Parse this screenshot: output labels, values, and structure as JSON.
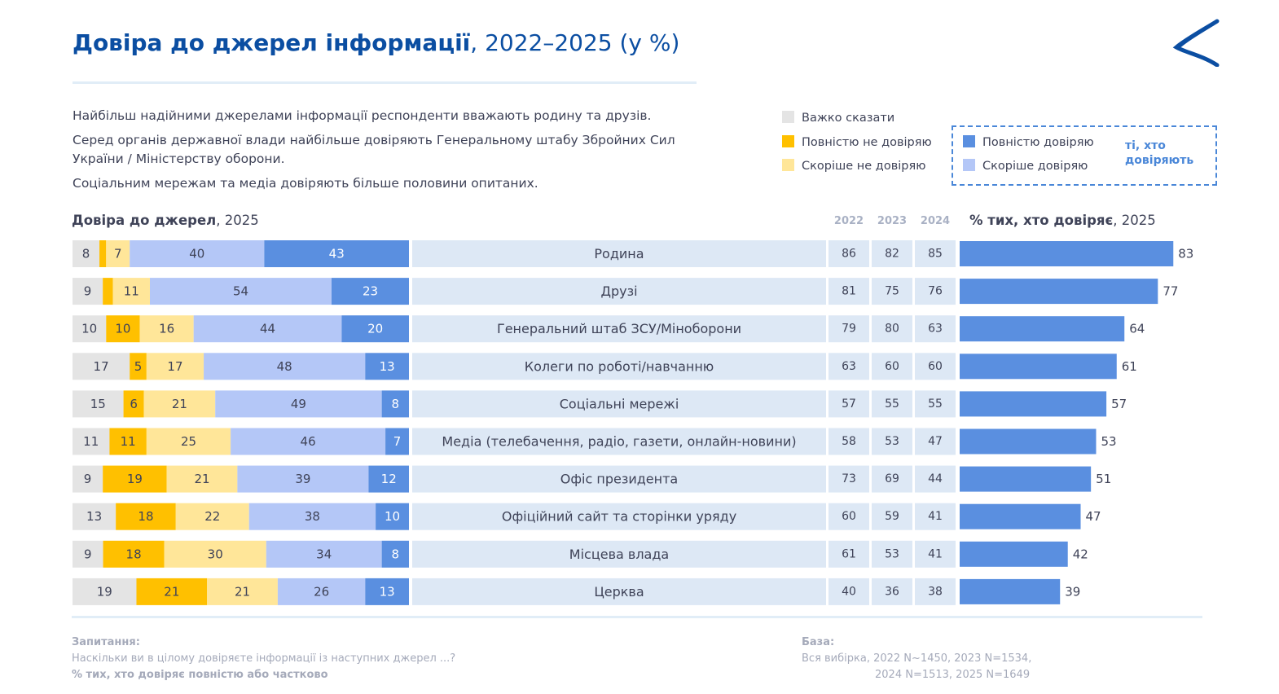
{
  "header": {
    "title_bold": "Довіра до джерел інформації",
    "title_rest": ", 2022–2025 (у %)"
  },
  "summary": [
    "Найбільш надійними джерелами інформації респонденти вважають родину та друзів.",
    "Серед органів державної влади найбільше довіряють Генеральному штабу Збройних Сил України / Міністерству оборони.",
    "Соціальним мережам та медіа довіряють більше половини опитаних."
  ],
  "legend": {
    "hard_to_say": "Важко сказати",
    "fully_distrust": "Повністю не довіряю",
    "rather_distrust": "Скоріше не довіряю",
    "fully_trust": "Повністю довіряю",
    "rather_trust": "Скоріше довіряю",
    "trusters_note": "ті, хто довіряють"
  },
  "colors": {
    "hard_to_say": "#e4e4e4",
    "fully_distrust": "#ffc000",
    "rather_distrust": "#ffe699",
    "rather_trust": "#b4c7f7",
    "fully_trust": "#5a8fe0",
    "label_band": "#dde8f5",
    "total_bar": "#5a8fe0",
    "accent": "#0b4ea2"
  },
  "section": {
    "left_bold": "Довіра до джерел",
    "left_rest": ", 2025",
    "right_bold": "% тих, хто довіряє",
    "right_rest": ", 2025"
  },
  "chart_data": {
    "type": "bar",
    "stacked": true,
    "orientation": "horizontal",
    "categories": [
      "Родина",
      "Друзі",
      "Генеральний штаб ЗСУ/Міноборони",
      "Колеги по роботі/навчанню",
      "Соціальні мережі",
      "Медіа (телебачення, радіо, газети, онлайн-новини)",
      "Офіс президента",
      "Офіційний сайт та сторінки уряду",
      "Місцева влада",
      "Церква"
    ],
    "series": [
      {
        "name": "Важко сказати",
        "key": "hard_to_say",
        "values": [
          8,
          9,
          10,
          17,
          15,
          11,
          9,
          13,
          9,
          19
        ]
      },
      {
        "name": "Повністю не довіряю",
        "key": "fully_distrust",
        "values": [
          2,
          3,
          10,
          5,
          6,
          11,
          19,
          18,
          18,
          21
        ],
        "hidden_labels": [
          true,
          true,
          false,
          false,
          false,
          false,
          false,
          false,
          false,
          false
        ]
      },
      {
        "name": "Скоріше не довіряю",
        "key": "rather_distrust",
        "values": [
          7,
          11,
          16,
          17,
          21,
          25,
          21,
          22,
          30,
          21
        ]
      },
      {
        "name": "Скоріше довіряю",
        "key": "rather_trust",
        "values": [
          40,
          54,
          44,
          48,
          49,
          46,
          39,
          38,
          34,
          26
        ]
      },
      {
        "name": "Повністю довіряю",
        "key": "fully_trust",
        "values": [
          43,
          23,
          20,
          13,
          8,
          7,
          12,
          10,
          8,
          13
        ]
      }
    ],
    "years": [
      "2022",
      "2023",
      "2024"
    ],
    "history": [
      [
        86,
        82,
        85
      ],
      [
        81,
        75,
        76
      ],
      [
        79,
        80,
        63
      ],
      [
        63,
        60,
        60
      ],
      [
        57,
        55,
        55
      ],
      [
        58,
        53,
        47
      ],
      [
        73,
        69,
        44
      ],
      [
        60,
        59,
        41
      ],
      [
        61,
        53,
        41
      ],
      [
        40,
        36,
        38
      ]
    ],
    "trust_2025": [
      83,
      77,
      64,
      61,
      57,
      53,
      51,
      47,
      42,
      39
    ],
    "xlim_stack": [
      0,
      100
    ],
    "xlim_trust": [
      0,
      100
    ]
  },
  "footer": {
    "question_label": "Запитання:",
    "question_text": "Наскільки ви в цілому довіряєте інформації із наступних джерел ...?",
    "question_note": "% тих, хто довіряє повністю або частково",
    "base_label": "База:",
    "base_line1": "Вся вибірка, 2022  N~1450, 2023  N=1534,",
    "base_line2": "2024 N=1513,  2025  N=1649"
  }
}
